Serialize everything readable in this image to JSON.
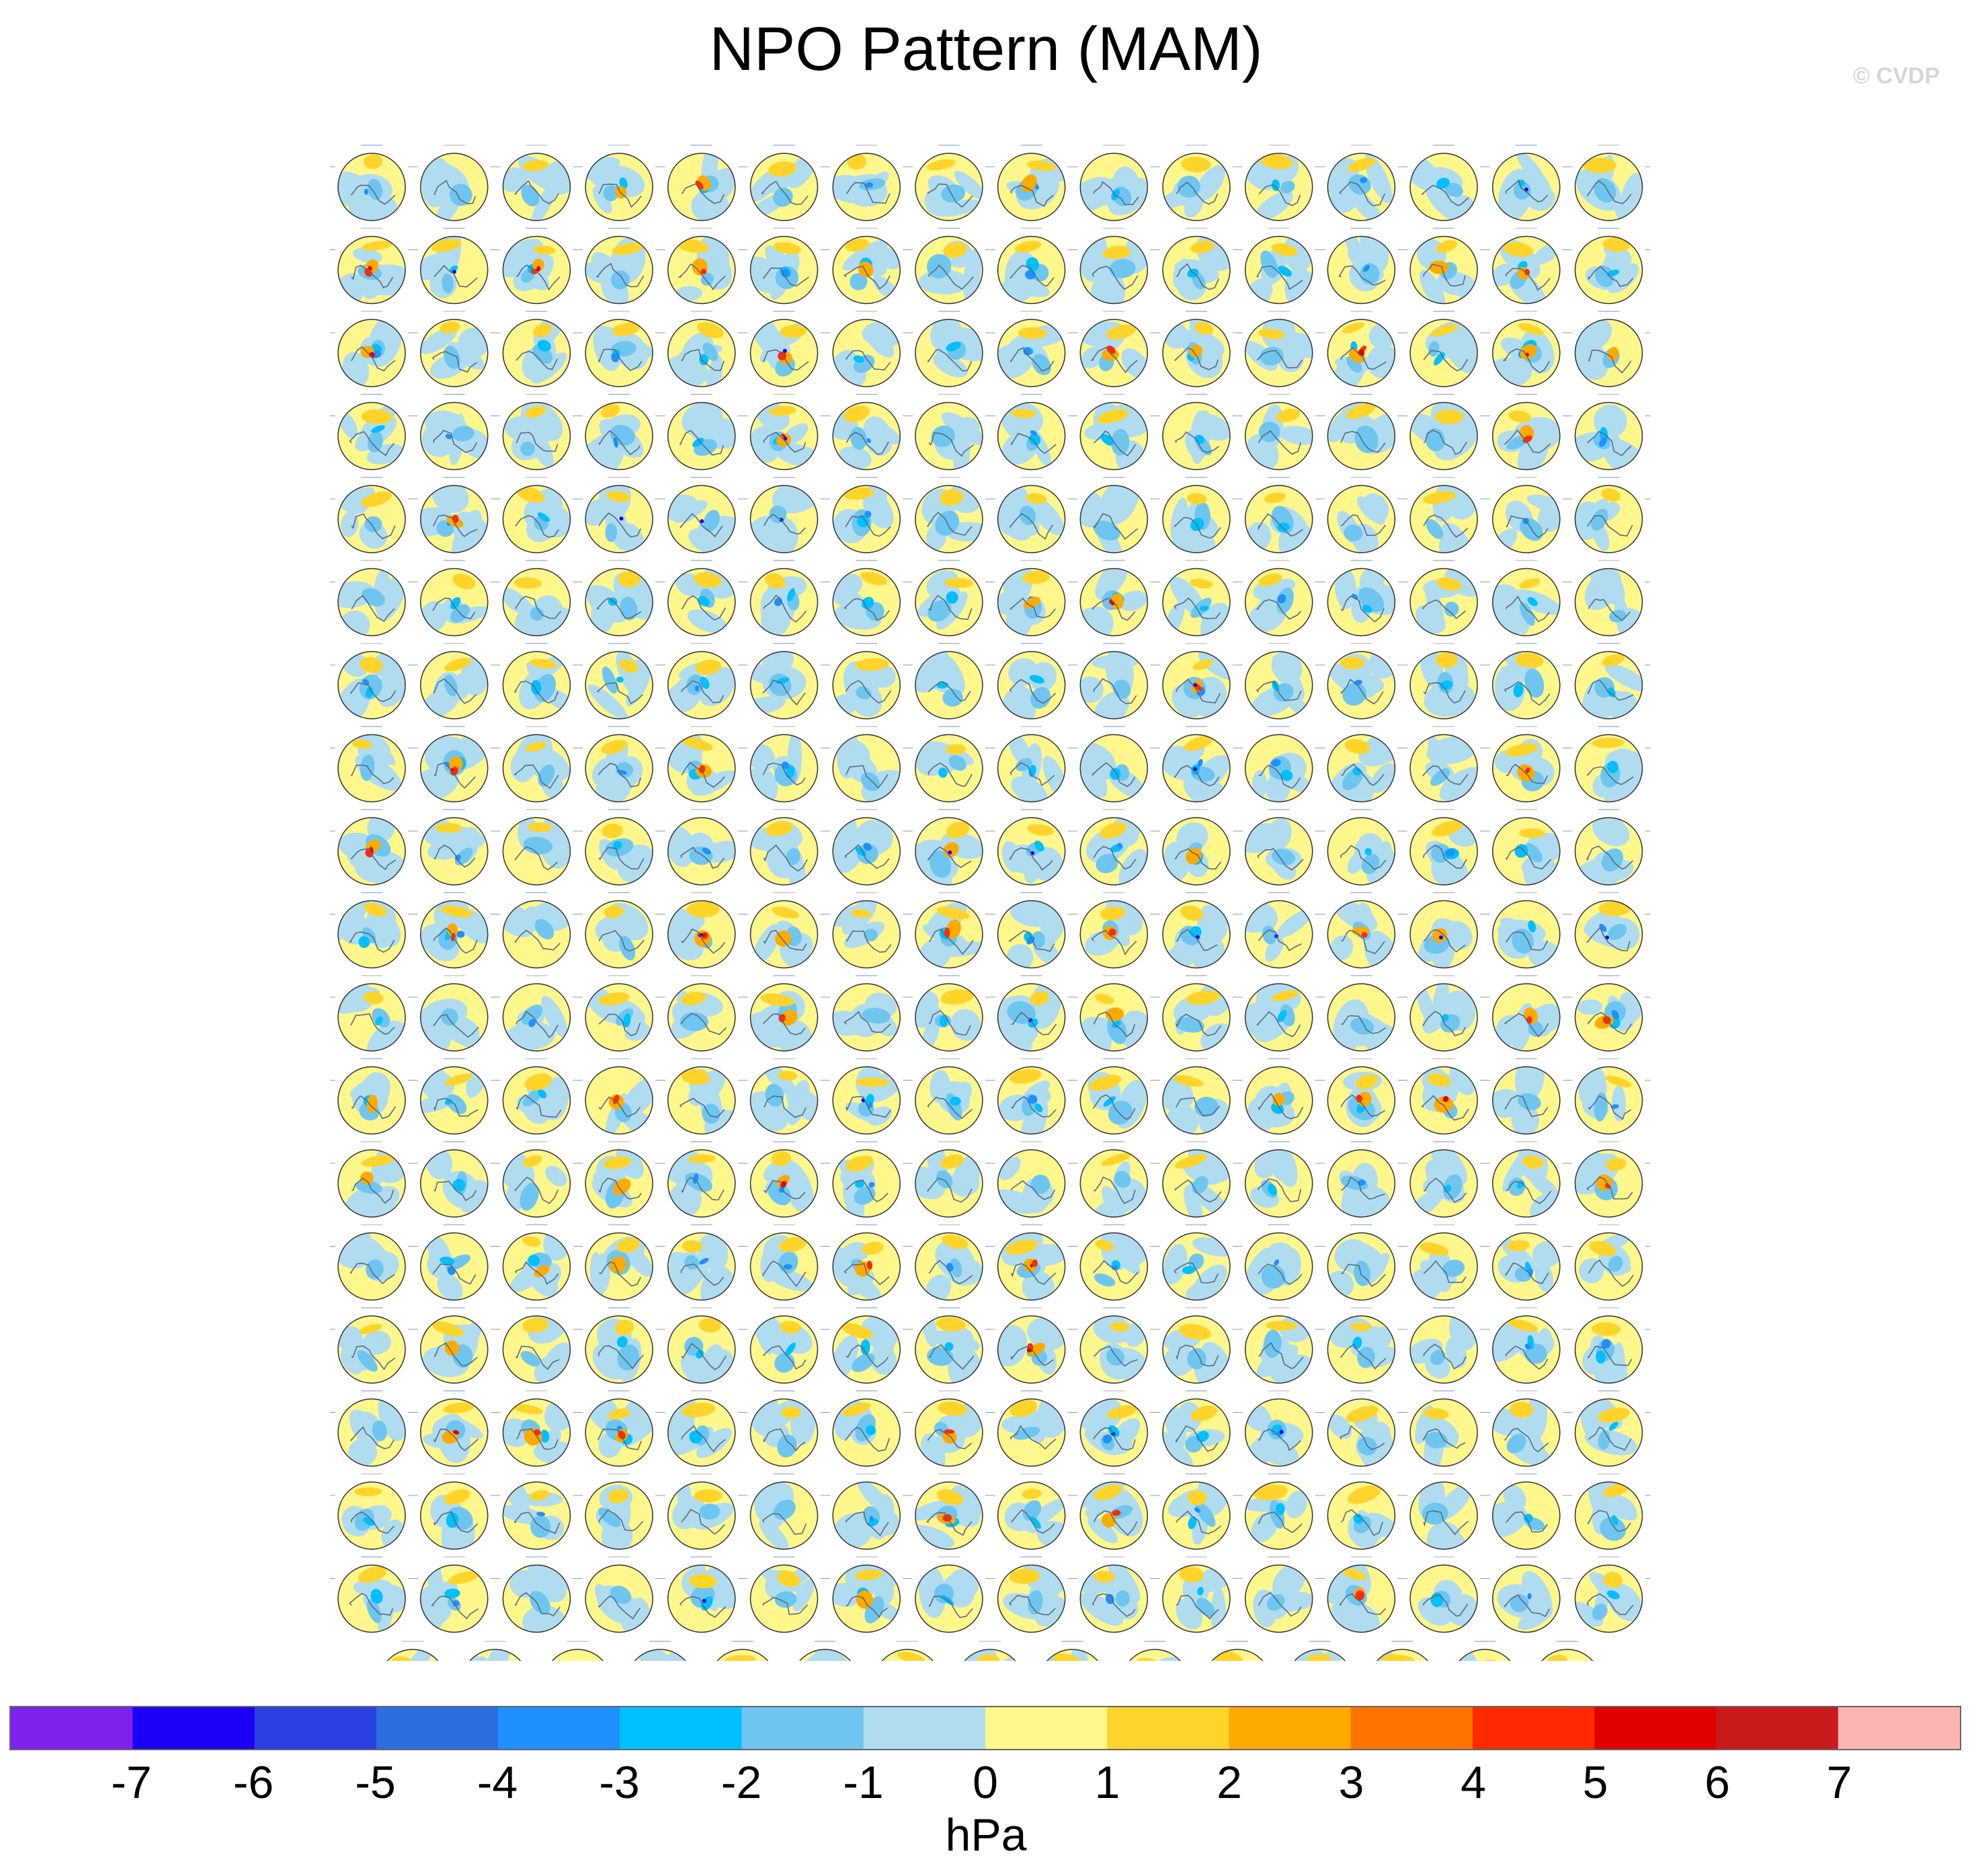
{
  "title": "NPO Pattern (MAM)",
  "watermark": "© CVDP",
  "chart_data": {
    "type": "heatmap",
    "title": "NPO Pattern (MAM)",
    "subtitle": "",
    "panel_grid": {
      "columns": 16,
      "full_rows": 18,
      "last_row_panels": 15,
      "total_panels": 303,
      "projection": "north polar stereographic",
      "variable": "sea level pressure anomaly"
    },
    "colorbar": {
      "label": "hPa",
      "tick_labels": [
        "-7",
        "-6",
        "-5",
        "-4",
        "-3",
        "-2",
        "-1",
        "0",
        "1",
        "2",
        "3",
        "4",
        "5",
        "6",
        "7"
      ],
      "levels": [
        -7,
        -6,
        -5,
        -4,
        -3,
        -2,
        -1,
        0,
        1,
        2,
        3,
        4,
        5,
        6,
        7
      ],
      "colors": [
        "#7f22ee",
        "#1c00f5",
        "#2a40e0",
        "#2c6ee0",
        "#1e90ff",
        "#00bfff",
        "#6ec6f0",
        "#b0dcf0",
        "#fff68c",
        "#ffd42a",
        "#ffaa00",
        "#ff7300",
        "#ff2a00",
        "#e00000",
        "#c81a1a",
        "#ffb4b4"
      ]
    }
  }
}
